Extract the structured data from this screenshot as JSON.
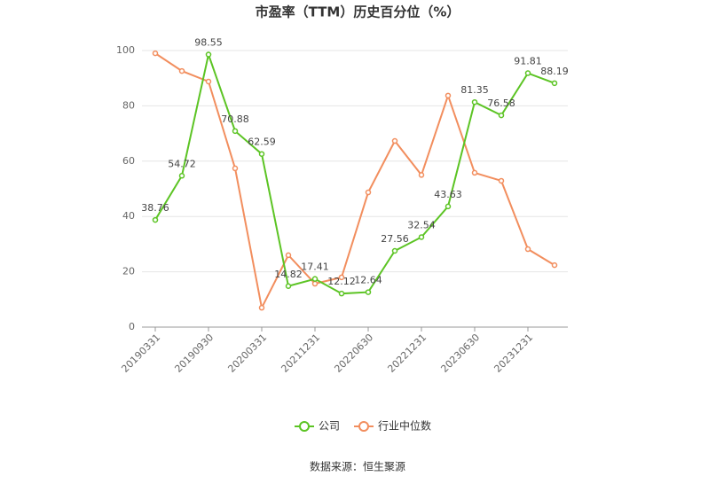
{
  "chart_data": {
    "type": "line",
    "title": "市盈率（TTM）历史百分位（%）",
    "categories": [
      "20190331",
      null,
      "20190930",
      null,
      "20200331",
      null,
      "20211231",
      null,
      "20220630",
      null,
      "20221231",
      null,
      "20230630",
      null,
      "20231231",
      null
    ],
    "series": [
      {
        "name": "公司",
        "color": "#5cc424",
        "values": [
          38.76,
          54.72,
          98.55,
          70.88,
          62.59,
          14.82,
          17.41,
          12.12,
          12.64,
          27.56,
          32.54,
          43.63,
          81.35,
          76.58,
          91.81,
          88.19
        ],
        "data_labels": true
      },
      {
        "name": "行业中位数",
        "color": "#f28e5e",
        "values": [
          99,
          92.6,
          88.8,
          57.4,
          7,
          26,
          15.7,
          18,
          48.7,
          67.3,
          55,
          83.7,
          55.8,
          52.9,
          28.2,
          22.4
        ]
      }
    ],
    "ylim": [
      0,
      100
    ],
    "yticks": [
      0,
      20,
      40,
      60,
      80,
      100
    ],
    "grid": true,
    "legend": "bottom",
    "source": "数据来源：恒生聚源"
  }
}
